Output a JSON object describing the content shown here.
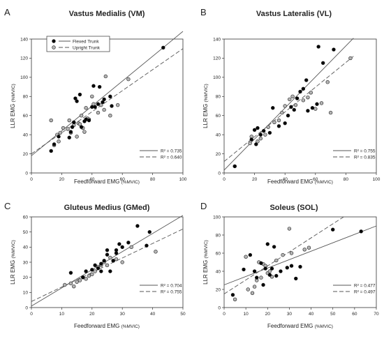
{
  "legend": {
    "flexed": "Flexed Trunk",
    "upright": "Upright Trunk"
  },
  "colors": {
    "flexed_fill": "#000000",
    "upright_fill": "#b4b4b4",
    "line": "#555555"
  },
  "chart_data": [
    {
      "type": "scatter",
      "panel_label": "A",
      "title": "Vastus Medialis (VM)",
      "xlabel_main": "Feedforward EMG",
      "xlabel_unit": "(%MVIC)",
      "ylabel_main": "LLR EMG",
      "ylabel_unit": "(%MVIC)",
      "xlim": [
        0,
        100
      ],
      "ylim": [
        0,
        140
      ],
      "xticks": [
        0,
        20,
        40,
        60,
        80,
        100
      ],
      "yticks": [
        0,
        20,
        40,
        60,
        80,
        100,
        120,
        140
      ],
      "show_legend": true,
      "series": [
        {
          "name": "Flexed Trunk",
          "r2_label": "R² = 0.735",
          "line": [
            [
              0,
              18
            ],
            [
              100,
              148
            ]
          ],
          "points": [
            [
              13,
              23
            ],
            [
              15,
              30
            ],
            [
              18,
              38
            ],
            [
              25,
              37
            ],
            [
              26,
              43
            ],
            [
              27,
              48
            ],
            [
              28,
              53
            ],
            [
              29,
              78
            ],
            [
              30,
              75
            ],
            [
              32,
              82
            ],
            [
              33,
              48
            ],
            [
              35,
              54
            ],
            [
              36,
              56
            ],
            [
              38,
              55
            ],
            [
              40,
              69
            ],
            [
              41,
              91
            ],
            [
              42,
              69
            ],
            [
              44,
              72
            ],
            [
              45,
              90
            ],
            [
              47,
              74
            ],
            [
              48,
              77
            ],
            [
              52,
              80
            ],
            [
              53,
              70
            ],
            [
              87,
              131
            ]
          ]
        },
        {
          "name": "Upright Trunk",
          "r2_label": "R² = 0.640",
          "line": [
            [
              0,
              20
            ],
            [
              100,
              130
            ]
          ],
          "points": [
            [
              13,
              55
            ],
            [
              15,
              29
            ],
            [
              17,
              40
            ],
            [
              18,
              33
            ],
            [
              19,
              42
            ],
            [
              21,
              47
            ],
            [
              24,
              46
            ],
            [
              25,
              55
            ],
            [
              26,
              42
            ],
            [
              28,
              50
            ],
            [
              30,
              38
            ],
            [
              31,
              52
            ],
            [
              32,
              51
            ],
            [
              33,
              60
            ],
            [
              34,
              47
            ],
            [
              35,
              43
            ],
            [
              36,
              68
            ],
            [
              37,
              57
            ],
            [
              38,
              56
            ],
            [
              40,
              80
            ],
            [
              41,
              72
            ],
            [
              44,
              63
            ],
            [
              46,
              71
            ],
            [
              48,
              66
            ],
            [
              49,
              101
            ],
            [
              52,
              60
            ],
            [
              57,
              71
            ],
            [
              64,
              98
            ]
          ]
        }
      ]
    },
    {
      "type": "scatter",
      "panel_label": "B",
      "title": "Vastus Lateralis (VL)",
      "xlabel_main": "Feedforward EMG",
      "xlabel_unit": "(%MVIC)",
      "ylabel_main": "LLR EMG",
      "ylabel_unit": "(%MVIC)",
      "xlim": [
        0,
        100
      ],
      "ylim": [
        0,
        140
      ],
      "xticks": [
        0,
        20,
        40,
        60,
        80,
        100
      ],
      "yticks": [
        0,
        20,
        40,
        60,
        80,
        100,
        120,
        140
      ],
      "show_legend": false,
      "series": [
        {
          "name": "Flexed Trunk",
          "r2_label": "R² = 0.755",
          "line": [
            [
              0,
              3
            ],
            [
              85,
              141
            ]
          ],
          "points": [
            [
              7,
              7
            ],
            [
              18,
              35
            ],
            [
              20,
              45
            ],
            [
              21,
              30
            ],
            [
              22,
              47
            ],
            [
              24,
              40
            ],
            [
              26,
              44
            ],
            [
              30,
              42
            ],
            [
              32,
              68
            ],
            [
              36,
              49
            ],
            [
              40,
              52
            ],
            [
              42,
              60
            ],
            [
              44,
              69
            ],
            [
              46,
              66
            ],
            [
              48,
              78
            ],
            [
              50,
              85
            ],
            [
              52,
              88
            ],
            [
              54,
              97
            ],
            [
              55,
              65
            ],
            [
              58,
              68
            ],
            [
              61,
              72
            ],
            [
              62,
              132
            ],
            [
              65,
              115
            ],
            [
              72,
              129
            ]
          ]
        },
        {
          "name": "Upright Trunk",
          "r2_label": "R² = 0.835",
          "line": [
            [
              0,
              12
            ],
            [
              85,
              122
            ]
          ],
          "points": [
            [
              7,
              7
            ],
            [
              17,
              31
            ],
            [
              18,
              38
            ],
            [
              22,
              33
            ],
            [
              24,
              36
            ],
            [
              27,
              40
            ],
            [
              29,
              48
            ],
            [
              33,
              53
            ],
            [
              36,
              55
            ],
            [
              38,
              63
            ],
            [
              40,
              70
            ],
            [
              43,
              77
            ],
            [
              45,
              80
            ],
            [
              47,
              71
            ],
            [
              52,
              76
            ],
            [
              55,
              79
            ],
            [
              57,
              84
            ],
            [
              60,
              67
            ],
            [
              64,
              73
            ],
            [
              68,
              95
            ],
            [
              70,
              63
            ],
            [
              83,
              120
            ]
          ]
        }
      ]
    },
    {
      "type": "scatter",
      "panel_label": "C",
      "title": "Gluteus Medius (GMed)",
      "xlabel_main": "Feedforward EMG",
      "xlabel_unit": "(%MVIC)",
      "ylabel_main": "LLR EMG",
      "ylabel_unit": "(%MVIC)",
      "xlim": [
        0,
        50
      ],
      "ylim": [
        0,
        60
      ],
      "xticks": [
        0,
        10,
        20,
        30,
        40,
        50
      ],
      "yticks": [
        0,
        10,
        20,
        30,
        40,
        50,
        60
      ],
      "show_legend": false,
      "series": [
        {
          "name": "Flexed Trunk",
          "r2_label": "R² = 0.704",
          "line": [
            [
              0,
              1
            ],
            [
              50,
              61
            ]
          ],
          "points": [
            [
              13,
              23
            ],
            [
              17,
              20
            ],
            [
              18,
              24
            ],
            [
              20,
              25
            ],
            [
              21,
              28
            ],
            [
              22,
              26
            ],
            [
              23,
              29
            ],
            [
              23,
              24
            ],
            [
              24,
              31
            ],
            [
              25,
              35
            ],
            [
              25,
              38
            ],
            [
              26,
              24
            ],
            [
              27,
              31
            ],
            [
              28,
              36
            ],
            [
              28,
              38
            ],
            [
              29,
              42
            ],
            [
              30,
              40
            ],
            [
              32,
              43
            ],
            [
              35,
              54
            ],
            [
              38,
              41
            ],
            [
              39,
              50
            ]
          ]
        },
        {
          "name": "Upright Trunk",
          "r2_label": "R² = 0.755",
          "line": [
            [
              0,
              4
            ],
            [
              50,
              52
            ]
          ],
          "points": [
            [
              11,
              15
            ],
            [
              13,
              16
            ],
            [
              14,
              14
            ],
            [
              15,
              17
            ],
            [
              16,
              18
            ],
            [
              17,
              20
            ],
            [
              18,
              19
            ],
            [
              19,
              21
            ],
            [
              20,
              22
            ],
            [
              21,
              24
            ],
            [
              22,
              27
            ],
            [
              23,
              28
            ],
            [
              24,
              30
            ],
            [
              25,
              28
            ],
            [
              26,
              33
            ],
            [
              27,
              31
            ],
            [
              28,
              32
            ],
            [
              30,
              30
            ],
            [
              33,
              40
            ],
            [
              41,
              37
            ]
          ]
        }
      ]
    },
    {
      "type": "scatter",
      "panel_label": "D",
      "title": "Soleus (SOL)",
      "xlabel_main": "Feedforward EMG",
      "xlabel_unit": "(%MVIC)",
      "ylabel_main": "LLR EMG",
      "ylabel_unit": "(%MVIC)",
      "xlim": [
        0,
        70
      ],
      "ylim": [
        0,
        100
      ],
      "xticks": [
        0,
        10,
        20,
        30,
        40,
        50,
        60,
        70
      ],
      "yticks": [
        0,
        20,
        40,
        60,
        80,
        100
      ],
      "show_legend": false,
      "series": [
        {
          "name": "Flexed Trunk",
          "r2_label": "R² = 0.477",
          "line": [
            [
              0,
              25
            ],
            [
              70,
              90
            ]
          ],
          "points": [
            [
              4,
              14
            ],
            [
              9,
              42
            ],
            [
              12,
              58
            ],
            [
              14,
              40
            ],
            [
              15,
              33
            ],
            [
              17,
              49
            ],
            [
              18,
              25
            ],
            [
              19,
              43
            ],
            [
              20,
              70
            ],
            [
              21,
              36
            ],
            [
              22,
              43
            ],
            [
              23,
              67
            ],
            [
              24,
              35
            ],
            [
              26,
              40
            ],
            [
              29,
              44
            ],
            [
              31,
              46
            ],
            [
              33,
              32
            ],
            [
              35,
              45
            ],
            [
              50,
              86
            ],
            [
              63,
              84
            ]
          ]
        },
        {
          "name": "Upright Trunk",
          "r2_label": "R² = 0.497",
          "line": [
            [
              0,
              15
            ],
            [
              55,
              100
            ]
          ],
          "points": [
            [
              5,
              9
            ],
            [
              10,
              56
            ],
            [
              11,
              20
            ],
            [
              13,
              16
            ],
            [
              14,
              23
            ],
            [
              15,
              30
            ],
            [
              16,
              50
            ],
            [
              17,
              33
            ],
            [
              18,
              48
            ],
            [
              19,
              46
            ],
            [
              20,
              38
            ],
            [
              21,
              40
            ],
            [
              22,
              34
            ],
            [
              24,
              52
            ],
            [
              27,
              58
            ],
            [
              30,
              87
            ],
            [
              31,
              60
            ],
            [
              37,
              64
            ],
            [
              39,
              66
            ]
          ]
        }
      ]
    }
  ]
}
